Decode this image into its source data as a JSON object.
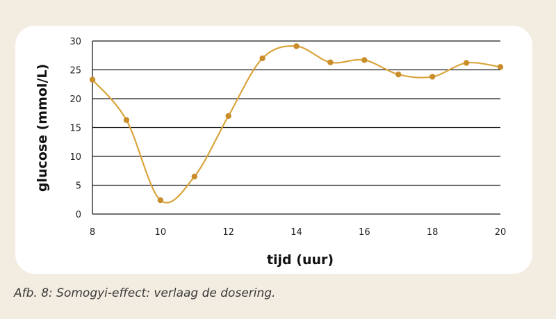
{
  "caption": "Afb. 8: Somogyi-effect: verlaag de dosering.",
  "chart_data": {
    "type": "line",
    "title": "",
    "xlabel": "tijd (uur)",
    "ylabel": "glucose (mmol/L)",
    "xlim": [
      8,
      20
    ],
    "ylim": [
      0,
      30
    ],
    "xticks": [
      8,
      10,
      12,
      14,
      16,
      18,
      20
    ],
    "yticks": [
      0,
      5,
      10,
      15,
      20,
      25,
      30
    ],
    "grid": "horizontal",
    "series": [
      {
        "color": "#d9a43c",
        "marker_color": "#c98d2a",
        "x": [
          8,
          9,
          10,
          11,
          12,
          13,
          14,
          15,
          16,
          17,
          18,
          19,
          20
        ],
        "y": [
          23.3,
          16.3,
          2.4,
          6.5,
          17.0,
          27.0,
          29.1,
          26.3,
          26.7,
          24.2,
          23.8,
          26.2,
          25.5
        ]
      }
    ]
  }
}
